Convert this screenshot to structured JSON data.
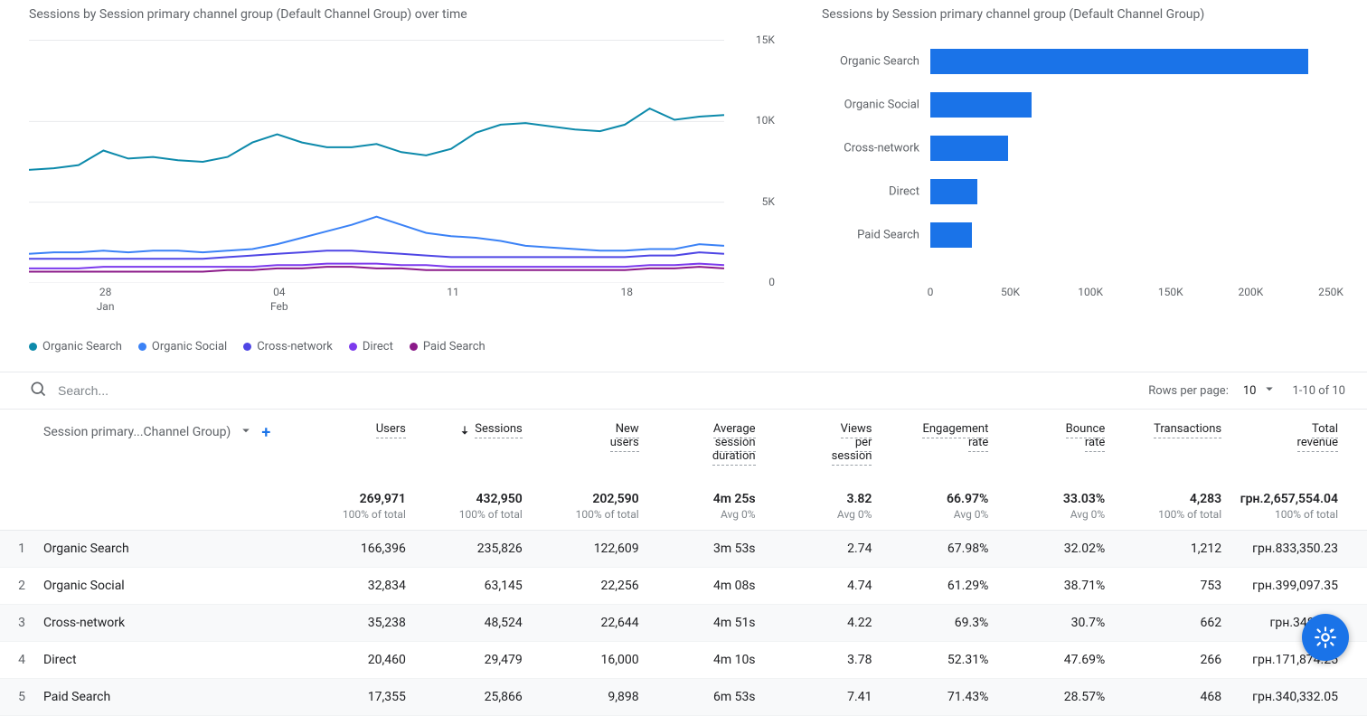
{
  "colors": {
    "series1": "#0d8aab",
    "series2": "#3b82f6",
    "series3": "#4f46e5",
    "series4": "#7c3aed",
    "series5": "#8b1a89",
    "bar_fill": "#1a73e8",
    "grid": "#e8eaed",
    "text": "#5f6368"
  },
  "line_chart": {
    "title": "Sessions by Session primary channel group (Default Channel Group) over time",
    "ylim": [
      0,
      15000
    ],
    "yticks": [
      {
        "pos": 0,
        "label": "15K"
      },
      {
        "pos": 0.3333,
        "label": "10K"
      },
      {
        "pos": 0.6667,
        "label": "5K"
      },
      {
        "pos": 1.0,
        "label": "0"
      }
    ],
    "xticks": [
      {
        "pos": 0.11,
        "top": "28",
        "bottom": "Jan"
      },
      {
        "pos": 0.36,
        "top": "04",
        "bottom": "Feb"
      },
      {
        "pos": 0.61,
        "top": "11",
        "bottom": ""
      },
      {
        "pos": 0.86,
        "top": "18",
        "bottom": ""
      }
    ],
    "series": [
      {
        "name": "Organic Search",
        "color_key": "series1",
        "data": [
          7000,
          7100,
          7300,
          8200,
          7700,
          7800,
          7600,
          7500,
          7800,
          8700,
          9200,
          8700,
          8400,
          8400,
          8600,
          8100,
          7900,
          8300,
          9300,
          9800,
          9900,
          9700,
          9500,
          9400,
          9800,
          10800,
          10100,
          10300,
          10400
        ]
      },
      {
        "name": "Organic Social",
        "color_key": "series2",
        "data": [
          1800,
          1900,
          1900,
          2000,
          1900,
          2000,
          2000,
          1900,
          2000,
          2100,
          2400,
          2800,
          3200,
          3600,
          4100,
          3600,
          3100,
          2900,
          2800,
          2600,
          2300,
          2200,
          2100,
          2000,
          2000,
          2100,
          2100,
          2400,
          2300
        ]
      },
      {
        "name": "Cross-network",
        "color_key": "series3",
        "data": [
          1500,
          1500,
          1500,
          1500,
          1500,
          1500,
          1500,
          1500,
          1600,
          1700,
          1800,
          1900,
          2000,
          2000,
          1900,
          1800,
          1700,
          1600,
          1600,
          1600,
          1600,
          1600,
          1600,
          1600,
          1600,
          1700,
          1700,
          1900,
          1800
        ]
      },
      {
        "name": "Direct",
        "color_key": "series4",
        "data": [
          900,
          900,
          900,
          1000,
          1000,
          1000,
          1000,
          1000,
          1000,
          1000,
          1100,
          1100,
          1200,
          1200,
          1200,
          1100,
          1100,
          1000,
          1000,
          1000,
          1000,
          1000,
          1000,
          1000,
          1000,
          1100,
          1100,
          1200,
          1100
        ]
      },
      {
        "name": "Paid Search",
        "color_key": "series5",
        "data": [
          700,
          700,
          700,
          700,
          700,
          700,
          700,
          700,
          800,
          800,
          900,
          900,
          1000,
          1000,
          900,
          900,
          800,
          800,
          800,
          800,
          800,
          800,
          800,
          800,
          800,
          900,
          900,
          1000,
          900
        ]
      }
    ],
    "legend": [
      "Organic Search",
      "Organic Social",
      "Cross-network",
      "Direct",
      "Paid Search"
    ]
  },
  "bar_chart": {
    "title": "Sessions by Session primary channel group (Default Channel Group)",
    "xlim": [
      0,
      250000
    ],
    "xticks": [
      {
        "pos": 0,
        "label": "0"
      },
      {
        "pos": 0.2,
        "label": "50K"
      },
      {
        "pos": 0.4,
        "label": "100K"
      },
      {
        "pos": 0.6,
        "label": "150K"
      },
      {
        "pos": 0.8,
        "label": "200K"
      },
      {
        "pos": 1.0,
        "label": "250K"
      }
    ],
    "bars": [
      {
        "label": "Organic Search",
        "value": 235826
      },
      {
        "label": "Organic Social",
        "value": 63145
      },
      {
        "label": "Cross-network",
        "value": 48524
      },
      {
        "label": "Direct",
        "value": 29479
      },
      {
        "label": "Paid Search",
        "value": 25866
      }
    ]
  },
  "search": {
    "placeholder": "Search..."
  },
  "pager": {
    "rows_label": "Rows per page:",
    "rows_value": "10",
    "range": "1-10 of 10"
  },
  "table": {
    "dimension_label": "Session primary...Channel Group)",
    "columns": [
      "Users",
      "Sessions",
      "New users",
      "Average session duration",
      "Views per session",
      "Engagement rate",
      "Bounce rate",
      "Transactions",
      "Total revenue"
    ],
    "sort_col_index": 1,
    "totals": {
      "values": [
        "269,971",
        "432,950",
        "202,590",
        "4m 25s",
        "3.82",
        "66.97%",
        "33.03%",
        "4,283",
        "грн.2,657,554.04"
      ],
      "subs": [
        "100% of total",
        "100% of total",
        "100% of total",
        "Avg 0%",
        "Avg 0%",
        "Avg 0%",
        "Avg 0%",
        "100% of total",
        "100% of total"
      ]
    },
    "rows": [
      {
        "idx": "1",
        "dim": "Organic Search",
        "cells": [
          "166,396",
          "235,826",
          "122,609",
          "3m 53s",
          "2.74",
          "67.98%",
          "32.02%",
          "1,212",
          "грн.833,350.23"
        ]
      },
      {
        "idx": "2",
        "dim": "Organic Social",
        "cells": [
          "32,834",
          "63,145",
          "22,256",
          "4m 08s",
          "4.74",
          "61.29%",
          "38.71%",
          "753",
          "грн.399,097.35"
        ]
      },
      {
        "idx": "3",
        "dim": "Cross-network",
        "cells": [
          "35,238",
          "48,524",
          "22,644",
          "4m 51s",
          "4.22",
          "69.3%",
          "30.7%",
          "662",
          "грн.348,197"
        ]
      },
      {
        "idx": "4",
        "dim": "Direct",
        "cells": [
          "20,460",
          "29,479",
          "16,000",
          "4m 10s",
          "3.78",
          "52.31%",
          "47.69%",
          "266",
          "грн.171,874.25"
        ]
      },
      {
        "idx": "5",
        "dim": "Paid Search",
        "cells": [
          "17,355",
          "25,866",
          "9,898",
          "6m 53s",
          "7.41",
          "71.43%",
          "28.57%",
          "468",
          "грн.340,332.05"
        ]
      }
    ]
  }
}
